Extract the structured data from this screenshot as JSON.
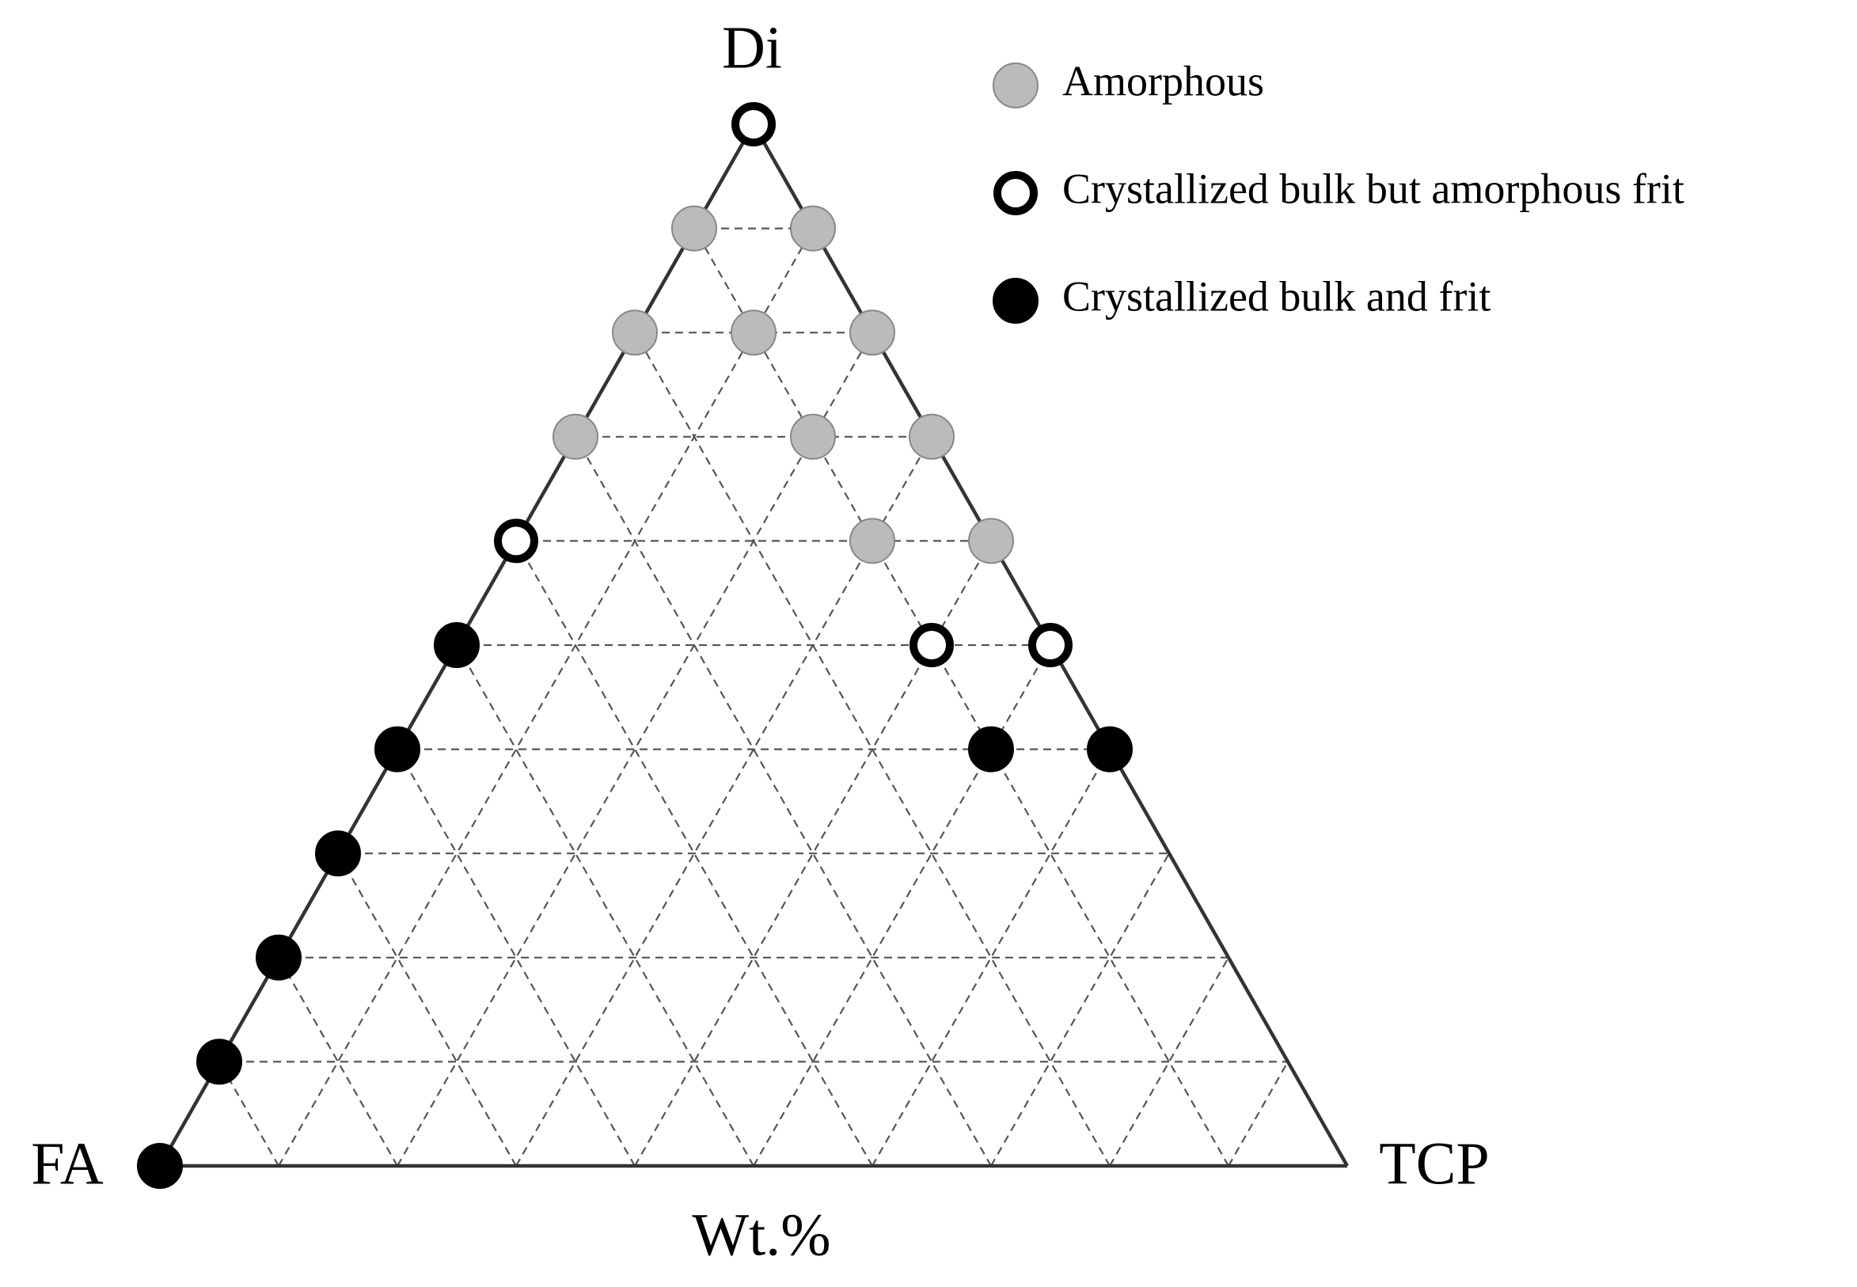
{
  "chart_data": {
    "type": "ternary",
    "axis_label": "Wt.%",
    "vertices": {
      "top": "Di",
      "left": "FA",
      "right": "TCP"
    },
    "grid": true,
    "ticks": [
      10,
      20,
      30,
      40,
      50,
      60,
      70,
      80,
      90
    ],
    "series": [
      {
        "name": "Amorphous",
        "color": "#bbbbbb",
        "marker": "filled",
        "di": [
          90,
          90,
          80,
          80,
          80,
          70,
          70,
          70,
          60,
          60
        ],
        "tcp": [
          0,
          10,
          0,
          10,
          20,
          0,
          20,
          30,
          30,
          40
        ],
        "fa": [
          10,
          0,
          20,
          10,
          0,
          30,
          10,
          0,
          10,
          0
        ]
      },
      {
        "name": "Crystallized bulk but amorphous frit",
        "color": "#000000",
        "marker": "hollow",
        "di": [
          100,
          60,
          50,
          50
        ],
        "tcp": [
          0,
          0,
          40,
          50
        ],
        "fa": [
          0,
          40,
          10,
          0
        ]
      },
      {
        "name": "Crystallized bulk and frit",
        "color": "#000000",
        "marker": "filled",
        "di": [
          50,
          40,
          40,
          40,
          30,
          20,
          10,
          0
        ],
        "tcp": [
          0,
          0,
          50,
          60,
          0,
          0,
          0,
          0
        ],
        "fa": [
          50,
          60,
          10,
          0,
          70,
          80,
          90,
          100
        ]
      }
    ]
  }
}
